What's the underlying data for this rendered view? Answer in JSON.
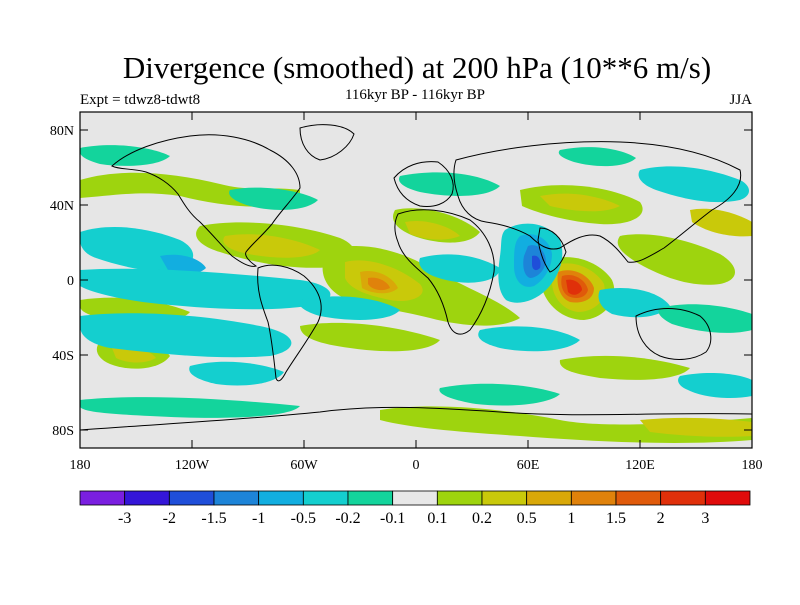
{
  "title": "Divergence (smoothed) at 200 hPa (10**6 m/s)",
  "left_label": "Expt = tdwz8-tdwt8",
  "center_label": "116kyr BP - 116kyr BP",
  "right_label": "JJA",
  "map": {
    "lat_ticks": [
      "80N",
      "40N",
      "0",
      "40S",
      "80S"
    ],
    "lon_ticks": [
      "180",
      "120W",
      "60W",
      "0",
      "60E",
      "120E",
      "180"
    ],
    "background_color": "#e6e6e6",
    "coastline_color": "#000000"
  },
  "colorbar": {
    "labels": [
      "-3",
      "-2",
      "-1.5",
      "-1",
      "-0.5",
      "-0.2",
      "-0.1",
      "0.1",
      "0.2",
      "0.5",
      "1",
      "1.5",
      "2",
      "3"
    ],
    "colors": [
      "#7a1fe0",
      "#3416d8",
      "#1f4ed9",
      "#1d84d8",
      "#12aee0",
      "#14cfcf",
      "#13d49c",
      "#e8e8e8",
      "#9ed40e",
      "#c9c90a",
      "#d9a809",
      "#e0820b",
      "#e05a0a",
      "#e0300a",
      "#e00b0b"
    ]
  }
}
